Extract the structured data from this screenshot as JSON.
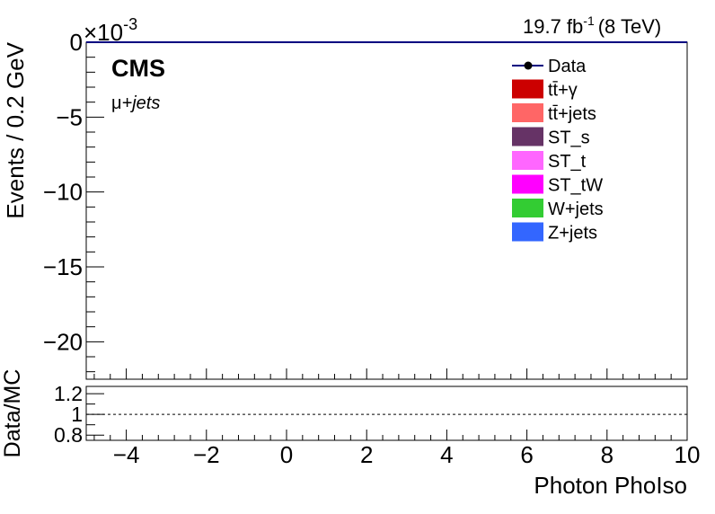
{
  "chart_data": {
    "type": "line",
    "header": {
      "lumi": "19.7 fb",
      "lumi_exp": "-1",
      "energy": "(8 TeV)",
      "experiment": "CMS",
      "channel_mu": "μ",
      "channel_rest": "+jets"
    },
    "main_panel": {
      "ylabel": "Events / 0.2 GeV",
      "ylim": [
        -0.0225,
        0.0
      ],
      "exponent_prefix": "×10",
      "exponent_value": "-3",
      "yticks": [
        {
          "value": 0,
          "label": "0"
        },
        {
          "value": -0.005,
          "label": "−5"
        },
        {
          "value": -0.01,
          "label": "−10"
        },
        {
          "value": -0.015,
          "label": "−15"
        },
        {
          "value": -0.02,
          "label": "−20"
        }
      ],
      "data_series_y": 0.0
    },
    "legend": [
      {
        "label": "Data",
        "kind": "marker",
        "color": "#000080"
      },
      {
        "label": "tt̄+γ",
        "kind": "fill",
        "color": "#cc0000"
      },
      {
        "label": "tt̄+jets",
        "kind": "fill",
        "color": "#ff6666"
      },
      {
        "label": "ST_s",
        "kind": "fill",
        "color": "#663366"
      },
      {
        "label": "ST_t",
        "kind": "fill",
        "color": "#ff66ff"
      },
      {
        "label": "ST_tW",
        "kind": "fill",
        "color": "#ff00ff"
      },
      {
        "label": "W+jets",
        "kind": "fill",
        "color": "#33cc33"
      },
      {
        "label": "Z+jets",
        "kind": "fill",
        "color": "#3366ff"
      }
    ],
    "ratio_panel": {
      "ylabel": "Data/MC",
      "ylim": [
        0.75,
        1.27
      ],
      "yticks": [
        {
          "value": 1.2,
          "label": "1.2"
        },
        {
          "value": 1.0,
          "label": "1"
        },
        {
          "value": 0.8,
          "label": "0.8"
        }
      ],
      "reference_line": 1.0
    },
    "xaxis": {
      "xlabel": "Photon PhoIso",
      "xlim": [
        -5,
        10
      ],
      "xticks": [
        {
          "value": -4,
          "label": "−4"
        },
        {
          "value": -2,
          "label": "−2"
        },
        {
          "value": 0,
          "label": "0"
        },
        {
          "value": 2,
          "label": "2"
        },
        {
          "value": 4,
          "label": "4"
        },
        {
          "value": 6,
          "label": "6"
        },
        {
          "value": 8,
          "label": "8"
        },
        {
          "value": 10,
          "label": "10"
        }
      ]
    }
  }
}
